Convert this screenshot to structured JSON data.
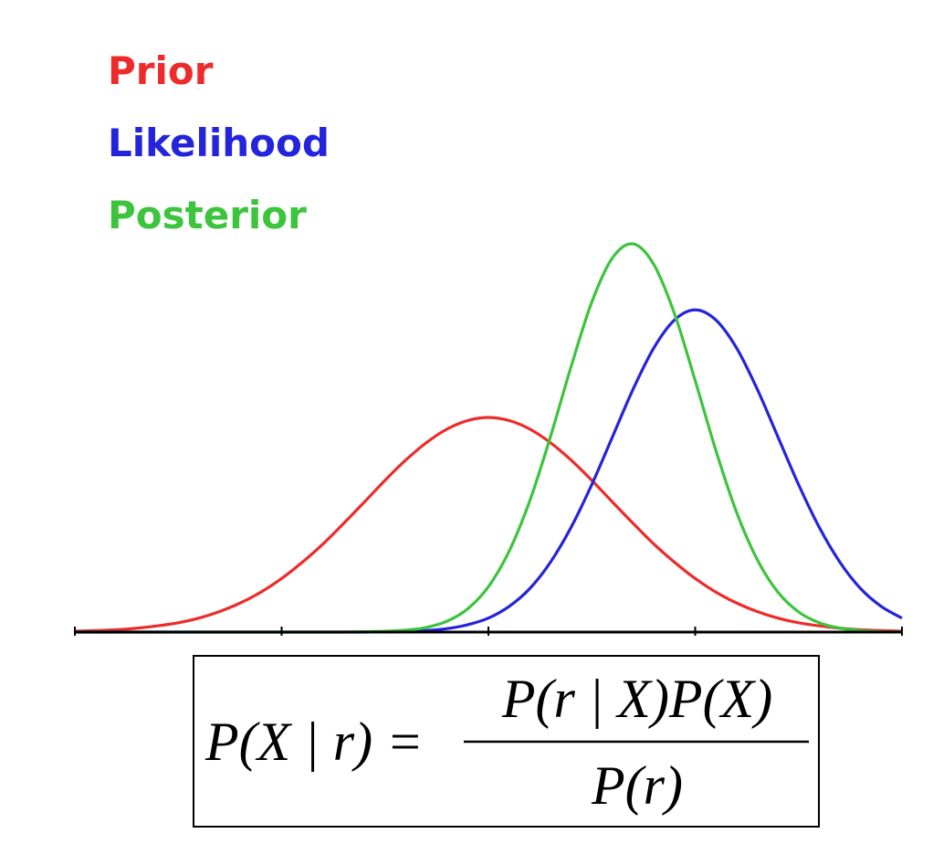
{
  "chart_data": {
    "type": "line",
    "x": [
      0,
      0.1,
      0.2,
      0.3,
      0.4,
      0.5,
      0.6,
      0.7,
      0.8,
      0.9,
      1,
      1.1,
      1.2,
      1.3,
      1.4,
      1.5,
      1.6,
      1.7,
      1.8,
      1.9,
      2,
      2.1,
      2.2,
      2.3,
      2.4,
      2.5,
      2.6,
      2.7,
      2.8,
      2.9,
      3,
      3.1,
      3.2,
      3.3,
      3.4,
      3.5,
      3.6,
      3.7,
      3.8,
      3.9,
      4
    ],
    "series": [
      {
        "name": "Prior",
        "color": "#ee2b2b",
        "values": [
          0.002,
          0.004,
          0.006,
          0.01,
          0.016,
          0.024,
          0.036,
          0.053,
          0.075,
          0.103,
          0.138,
          0.18,
          0.227,
          0.28,
          0.335,
          0.391,
          0.443,
          0.488,
          0.523,
          0.545,
          0.553,
          0.545,
          0.523,
          0.488,
          0.443,
          0.391,
          0.335,
          0.28,
          0.227,
          0.18,
          0.138,
          0.103,
          0.075,
          0.053,
          0.036,
          0.024,
          0.016,
          0.01,
          0.006,
          0.004,
          0.002
        ]
      },
      {
        "name": "Likelihood",
        "color": "#2424dc",
        "values": [
          0,
          0,
          0,
          0,
          0,
          0,
          0,
          0,
          0,
          0,
          0,
          0,
          0,
          0,
          0,
          0.001,
          0.002,
          0.004,
          0.009,
          0.019,
          0.036,
          0.066,
          0.112,
          0.18,
          0.27,
          0.38,
          0.503,
          0.626,
          0.732,
          0.804,
          0.83,
          0.804,
          0.732,
          0.626,
          0.503,
          0.38,
          0.27,
          0.18,
          0.112,
          0.066,
          0.036
        ]
      },
      {
        "name": "Posterior",
        "color": "#3cc43c",
        "values": [
          0,
          0,
          0,
          0,
          0,
          0,
          0,
          0,
          0,
          0,
          0,
          0,
          0,
          0,
          0.001,
          0.002,
          0.005,
          0.012,
          0.028,
          0.06,
          0.117,
          0.208,
          0.338,
          0.503,
          0.684,
          0.85,
          0.964,
          1.0,
          0.947,
          0.82,
          0.648,
          0.468,
          0.309,
          0.187,
          0.103,
          0.052,
          0.024,
          0.01,
          0.004,
          0.001,
          0
        ]
      }
    ],
    "xlim": [
      0,
      4
    ],
    "xticks": [
      0,
      1,
      2,
      3,
      4
    ],
    "ylim": [
      0,
      1
    ],
    "formula": {
      "lhs": "P(X | r) =",
      "numerator": "P(r | X)P(X)",
      "denominator": "P(r)"
    }
  }
}
